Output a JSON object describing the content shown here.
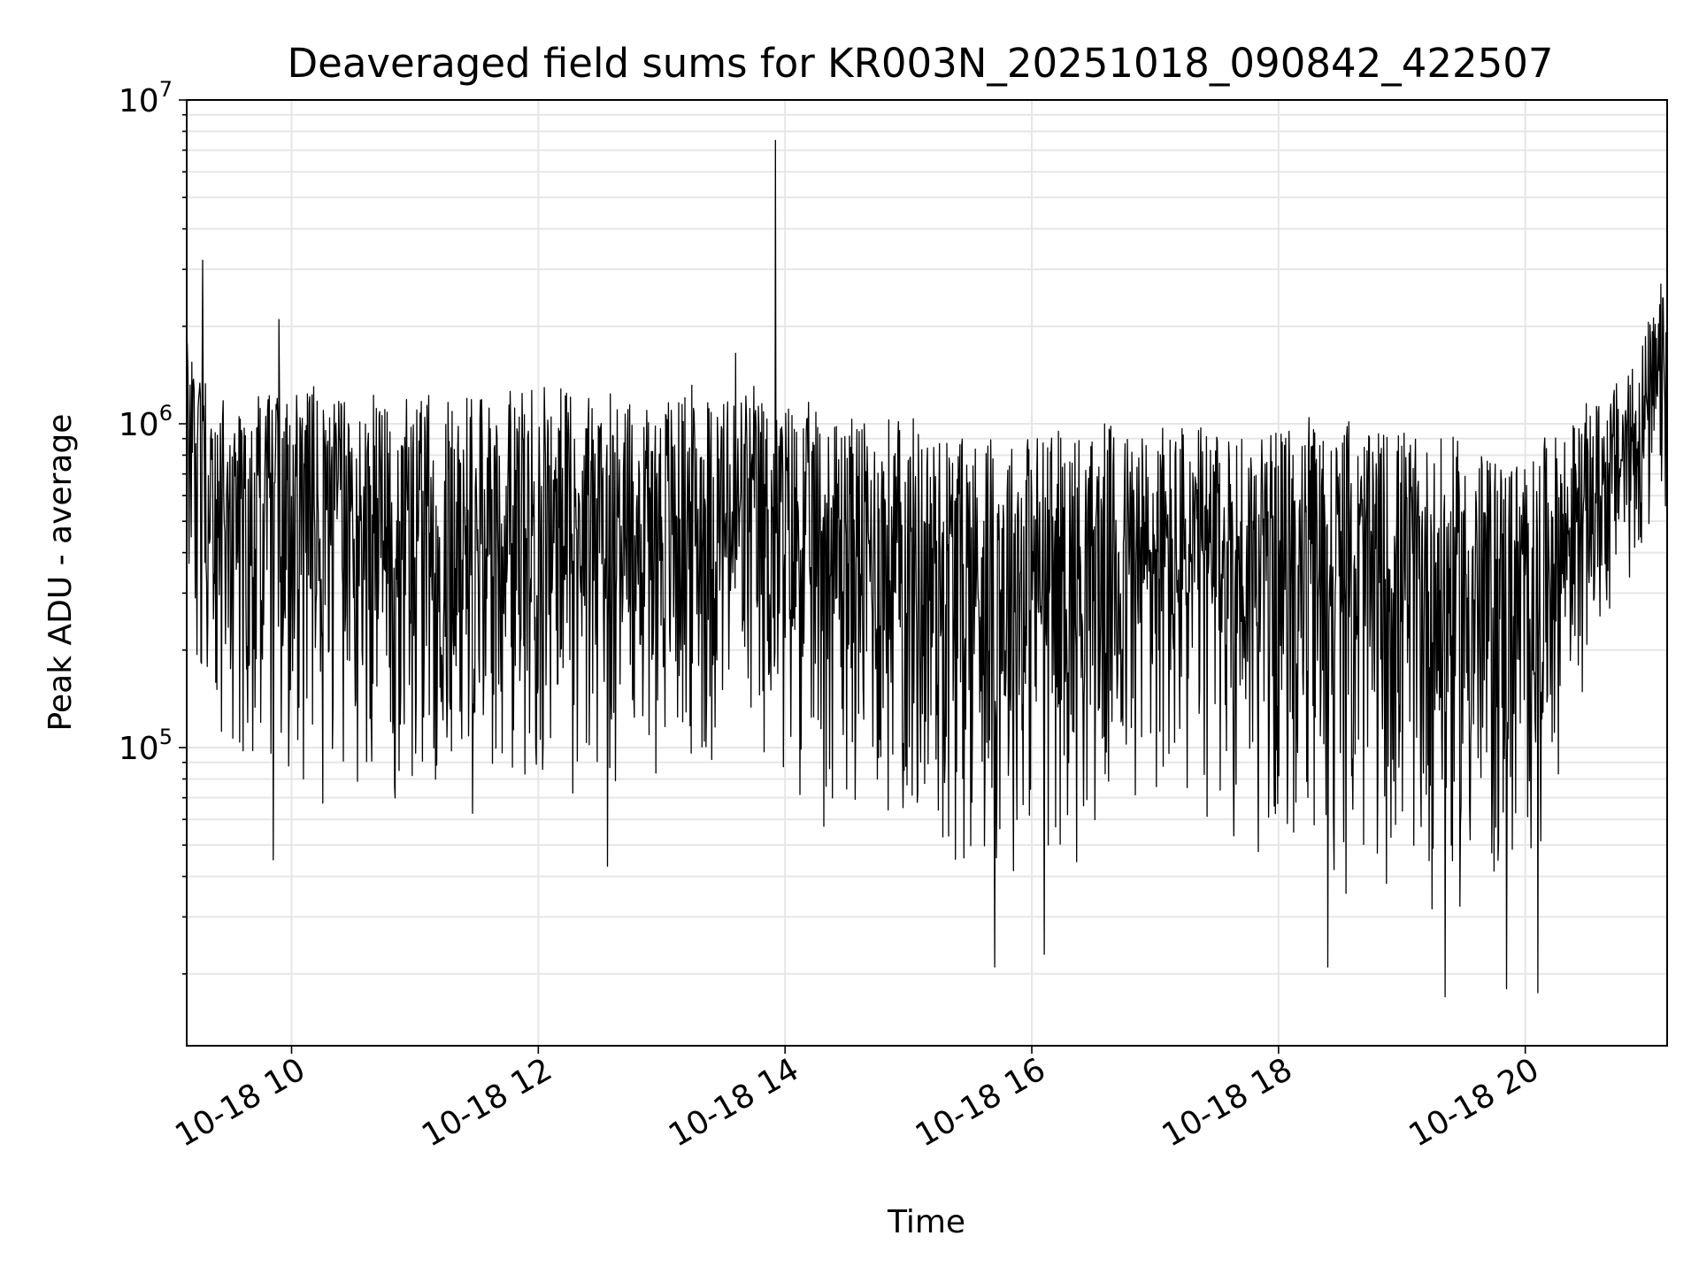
{
  "chart_data": {
    "type": "line",
    "title": "Deaveraged field sums for KR003N_20251018_090842_422507",
    "xlabel": "Time",
    "ylabel": "Peak ADU - average",
    "yscale": "log",
    "grid": true,
    "xlim_hours": [
      9.15,
      21.15
    ],
    "ylim": [
      12000,
      10000000
    ],
    "x_ticks": [
      {
        "hour": 10,
        "label": "10-18 10"
      },
      {
        "hour": 12,
        "label": "10-18 12"
      },
      {
        "hour": 14,
        "label": "10-18 14"
      },
      {
        "hour": 16,
        "label": "10-18 16"
      },
      {
        "hour": 18,
        "label": "10-18 18"
      },
      {
        "hour": 20,
        "label": "10-18 20"
      }
    ],
    "y_ticks": [
      {
        "value": 100000,
        "base": "10",
        "exp": "5"
      },
      {
        "value": 1000000,
        "base": "10",
        "exp": "6"
      },
      {
        "value": 10000000,
        "base": "10",
        "exp": "7"
      }
    ],
    "series": [
      {
        "name": "deaveraged field sum",
        "color": "#000000",
        "envelope": [
          {
            "hour": 9.15,
            "upper": 1900000,
            "lower": 300000
          },
          {
            "hour": 9.4,
            "upper": 1200000,
            "lower": 60000
          },
          {
            "hour": 9.9,
            "upper": 1300000,
            "lower": 60000
          },
          {
            "hour": 10.5,
            "upper": 1200000,
            "lower": 65000
          },
          {
            "hour": 11.5,
            "upper": 1200000,
            "lower": 60000
          },
          {
            "hour": 12.2,
            "upper": 1300000,
            "lower": 60000
          },
          {
            "hour": 13.0,
            "upper": 1250000,
            "lower": 70000
          },
          {
            "hour": 13.7,
            "upper": 1300000,
            "lower": 65000
          },
          {
            "hour": 14.2,
            "upper": 1100000,
            "lower": 60000
          },
          {
            "hour": 14.7,
            "upper": 1050000,
            "lower": 50000
          },
          {
            "hour": 15.2,
            "upper": 1000000,
            "lower": 35000
          },
          {
            "hour": 15.7,
            "upper": 950000,
            "lower": 35000
          },
          {
            "hour": 16.3,
            "upper": 950000,
            "lower": 40000
          },
          {
            "hour": 17.0,
            "upper": 1000000,
            "lower": 45000
          },
          {
            "hour": 17.6,
            "upper": 950000,
            "lower": 45000
          },
          {
            "hour": 18.3,
            "upper": 1000000,
            "lower": 35000
          },
          {
            "hour": 19.0,
            "upper": 950000,
            "lower": 30000
          },
          {
            "hour": 19.5,
            "upper": 850000,
            "lower": 25000
          },
          {
            "hour": 20.0,
            "upper": 800000,
            "lower": 28000
          },
          {
            "hour": 20.4,
            "upper": 1000000,
            "lower": 120000
          },
          {
            "hour": 20.8,
            "upper": 1400000,
            "lower": 250000
          },
          {
            "hour": 21.15,
            "upper": 2600000,
            "lower": 400000
          }
        ],
        "spikes": [
          {
            "hour": 9.28,
            "value": 3200000
          },
          {
            "hour": 9.9,
            "value": 2100000
          },
          {
            "hour": 13.92,
            "value": 7500000
          },
          {
            "hour": 13.6,
            "value": 1650000
          },
          {
            "hour": 21.1,
            "value": 2700000
          }
        ],
        "dips": [
          {
            "hour": 9.85,
            "value": 45000
          },
          {
            "hour": 12.56,
            "value": 43000
          },
          {
            "hour": 15.7,
            "value": 21000
          },
          {
            "hour": 16.1,
            "value": 23000
          },
          {
            "hour": 18.4,
            "value": 21000
          },
          {
            "hour": 19.35,
            "value": 17000
          },
          {
            "hour": 19.85,
            "value": 18000
          },
          {
            "hour": 20.1,
            "value": 17500
          }
        ]
      }
    ]
  }
}
